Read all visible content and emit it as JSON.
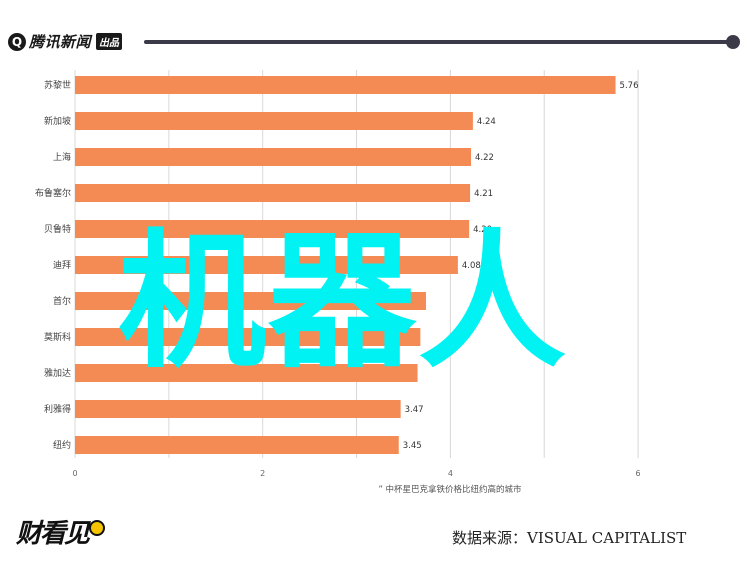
{
  "header": {
    "brand": "腾讯新闻",
    "brand_tag": "出品"
  },
  "watermark": "机器人",
  "footer": {
    "logo_text": "财看见",
    "source": "数据来源：VISUAL CAPITALIST"
  },
  "chart_data": {
    "type": "bar",
    "orientation": "horizontal",
    "categories": [
      "苏黎世",
      "新加坡",
      "上海",
      "布鲁塞尔",
      "贝鲁特",
      "迪拜",
      "首尔",
      "莫斯科",
      "雅加达",
      "利雅得",
      "纽约"
    ],
    "values": [
      5.76,
      4.24,
      4.22,
      4.21,
      4.2,
      4.08,
      3.74,
      3.68,
      3.65,
      3.47,
      3.45
    ],
    "value_labels": [
      "5.76",
      "4.24",
      "4.22",
      "4.21",
      "4.20",
      "4.08",
      "",
      "",
      "",
      "3.47",
      "3.45"
    ],
    "xlim": [
      0,
      6.5
    ],
    "xticks": [
      0,
      2,
      4,
      6
    ],
    "xlabel": "中杯星巴克拿铁价格比纽约高的城市",
    "legend_marker": "”",
    "bar_color": "#f58b54",
    "grid": true
  }
}
